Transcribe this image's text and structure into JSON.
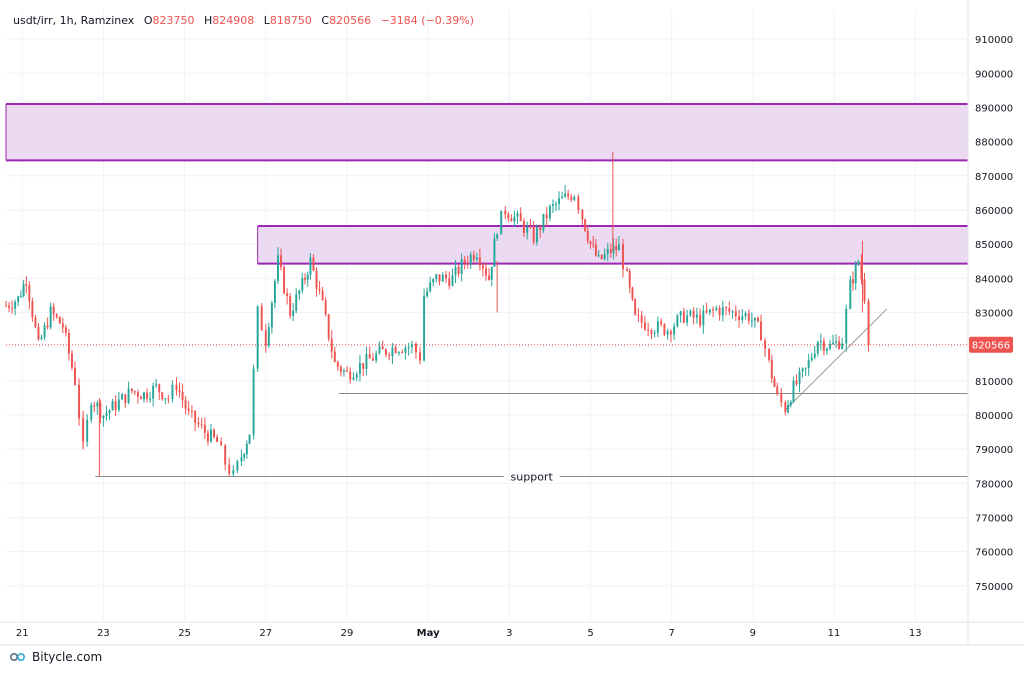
{
  "header": {
    "symbol": "usdt/irr, 1h, Ramzinex",
    "o_label": "O",
    "o_value": "823750",
    "h_label": "H",
    "h_value": "824908",
    "l_label": "L",
    "l_value": "818750",
    "c_label": "C",
    "c_value": "820566",
    "change": "−3184 (−0.39%)"
  },
  "footer": {
    "brand": "Bitycle.com",
    "logo_icon": "bitycle-logo-icon"
  },
  "colors": {
    "up": "#26a69a",
    "down": "#ef5350",
    "zone_fill": "#e8d4ef",
    "zone_border": "#9c27b0",
    "grid": "#f0f3fa",
    "axis_text": "#131722",
    "line": "#8a8a8a",
    "last_price": "#ef5350"
  },
  "chart_data": {
    "type": "candlestick",
    "title": "usdt/irr, 1h, Ramzinex",
    "xlabel": "",
    "ylabel": "",
    "ylim": [
      740000,
      915000
    ],
    "x_ticks": [
      "21",
      "23",
      "25",
      "27",
      "29",
      "May",
      "3",
      "5",
      "7",
      "9",
      "11",
      "13"
    ],
    "y_ticks": [
      750000,
      760000,
      770000,
      780000,
      790000,
      800000,
      810000,
      820000,
      830000,
      840000,
      850000,
      860000,
      870000,
      880000,
      890000,
      900000,
      910000
    ],
    "grid": true,
    "last_price": 820566,
    "last_price_label": "820566",
    "price_path": [
      [
        20.6,
        832000
      ],
      [
        20.9,
        834000
      ],
      [
        21.1,
        840000
      ],
      [
        21.4,
        820000
      ],
      [
        21.7,
        830000
      ],
      [
        22.0,
        826000
      ],
      [
        22.3,
        810000
      ],
      [
        22.5,
        790000
      ],
      [
        22.7,
        805000
      ],
      [
        23.0,
        800000
      ],
      [
        23.3,
        803000
      ],
      [
        23.7,
        807000
      ],
      [
        24.0,
        806000
      ],
      [
        24.3,
        808000
      ],
      [
        24.6,
        805000
      ],
      [
        24.8,
        809000
      ],
      [
        25.1,
        800000
      ],
      [
        25.5,
        795000
      ],
      [
        25.8,
        792000
      ],
      [
        26.0,
        786000
      ],
      [
        26.2,
        782000
      ],
      [
        26.4,
        788000
      ],
      [
        26.6,
        795000
      ],
      [
        26.8,
        830000
      ],
      [
        27.0,
        822000
      ],
      [
        27.3,
        845000
      ],
      [
        27.6,
        830000
      ],
      [
        27.9,
        838000
      ],
      [
        28.1,
        845000
      ],
      [
        28.4,
        832000
      ],
      [
        28.7,
        815000
      ],
      [
        29.0,
        812000
      ],
      [
        29.4,
        815000
      ],
      [
        29.8,
        818000
      ],
      [
        30.2,
        820000
      ],
      [
        30.6,
        820000
      ],
      [
        30.8,
        817000
      ],
      [
        30.9,
        835000
      ],
      [
        31.2,
        840000
      ],
      [
        31.6,
        840000
      ],
      [
        31.9,
        845000
      ],
      [
        32.2,
        848000
      ],
      [
        32.5,
        840000
      ],
      [
        32.7,
        855000
      ],
      [
        32.9,
        860000
      ],
      [
        33.2,
        857000
      ],
      [
        33.6,
        852000
      ],
      [
        34.0,
        860000
      ],
      [
        34.3,
        863000
      ],
      [
        34.6,
        865000
      ],
      [
        34.8,
        858000
      ],
      [
        35.0,
        850000
      ],
      [
        35.2,
        845000
      ],
      [
        35.5,
        848000
      ],
      [
        35.7,
        849000
      ],
      [
        35.9,
        840000
      ],
      [
        36.1,
        828000
      ],
      [
        36.5,
        826000
      ],
      [
        36.9,
        825000
      ],
      [
        37.3,
        829000
      ],
      [
        37.7,
        828000
      ],
      [
        38.1,
        831000
      ],
      [
        38.5,
        830000
      ],
      [
        38.9,
        829000
      ],
      [
        39.2,
        824000
      ],
      [
        39.4,
        815000
      ],
      [
        39.6,
        805000
      ],
      [
        39.8,
        802000
      ],
      [
        40.0,
        808000
      ],
      [
        40.3,
        813000
      ],
      [
        40.6,
        822000
      ],
      [
        40.9,
        820000
      ],
      [
        41.2,
        822000
      ],
      [
        41.4,
        838000
      ],
      [
        41.6,
        845000
      ],
      [
        41.75,
        835000
      ],
      [
        41.85,
        820566
      ]
    ],
    "shapes": [
      {
        "kind": "zone",
        "name": "upper-resistance-zone",
        "x_from": 20.6,
        "x_to": 44.3,
        "y_from": 874500,
        "y_to": 891000
      },
      {
        "kind": "zone",
        "name": "middle-resistance-zone",
        "x_from": 26.8,
        "x_to": 44.3,
        "y_from": 844300,
        "y_to": 855300
      },
      {
        "kind": "horizontal_line",
        "name": "support-line",
        "x_from": 22.8,
        "x_to": 44.3,
        "y": 782000,
        "label": "support"
      },
      {
        "kind": "horizontal_line",
        "name": "mid-support-line",
        "x_from": 28.8,
        "x_to": 44.3,
        "y": 806300,
        "label": ""
      },
      {
        "kind": "trend_line",
        "name": "rising-trend-line",
        "from": [
          39.8,
          801500
        ],
        "to": [
          42.3,
          831000
        ]
      }
    ]
  }
}
